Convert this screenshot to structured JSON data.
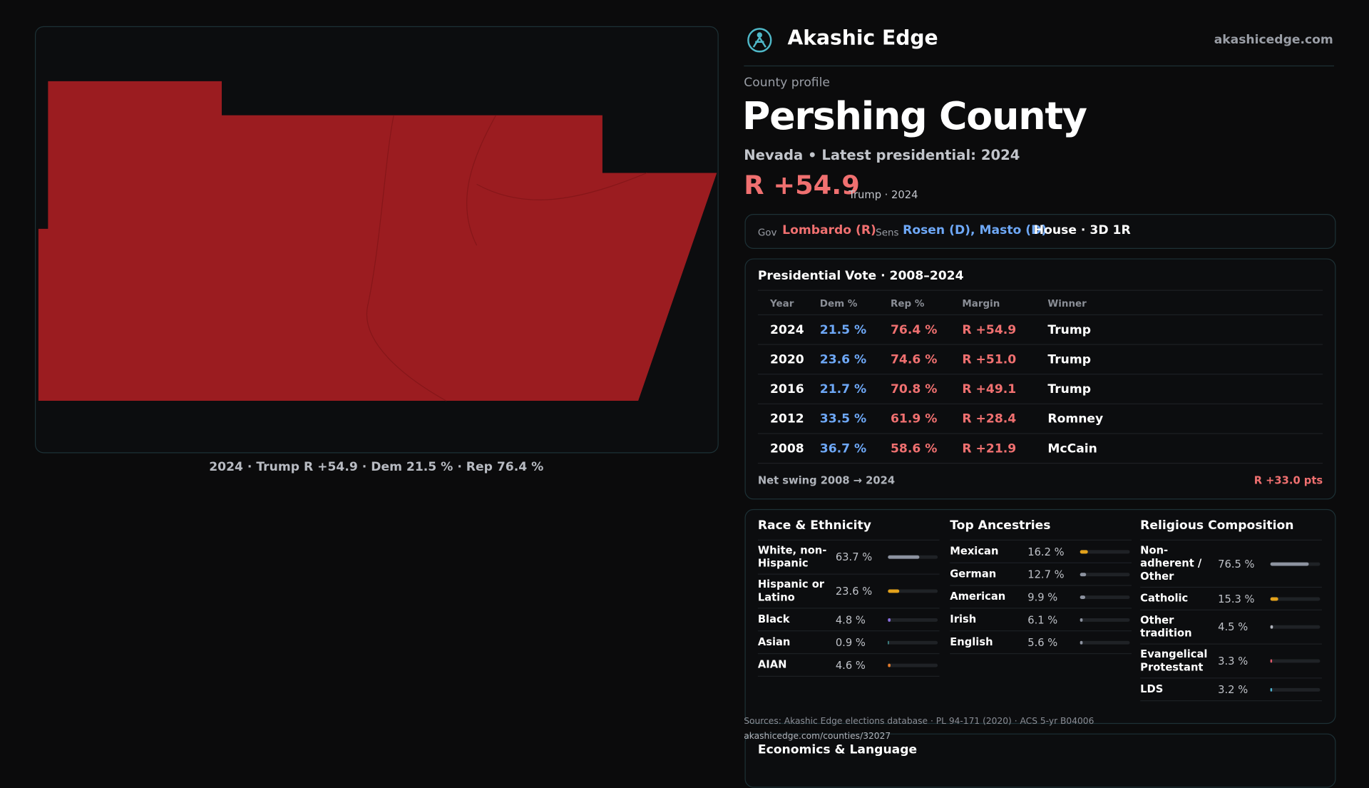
{
  "header": {
    "brand": "Akashic Edge",
    "site": "akashicedge.com"
  },
  "map": {
    "caption": "2024 · Trump R +54.9 · Dem 21.5 % · Rep 76.4 %"
  },
  "profile": {
    "kicker": "County profile",
    "title": "Pershing County",
    "subtitle": "Nevada • Latest presidential: 2024",
    "margin": "R +54.9",
    "margin_note": "Trump · 2024"
  },
  "officials": {
    "gov_label": "Gov",
    "gov": "Lombardo (R)",
    "sens_label": "Sens",
    "sens": "Rosen (D), Masto (D)",
    "house": "House · 3D 1R"
  },
  "presidential": {
    "title": "Presidential Vote · 2008–2024",
    "columns": [
      "Year",
      "Dem %",
      "Rep %",
      "Margin",
      "Winner"
    ],
    "rows": [
      [
        "2024",
        "21.5 %",
        "76.4 %",
        "R +54.9",
        "Trump"
      ],
      [
        "2020",
        "23.6 %",
        "74.6 %",
        "R +51.0",
        "Trump"
      ],
      [
        "2016",
        "21.7 %",
        "70.8 %",
        "R +49.1",
        "Trump"
      ],
      [
        "2012",
        "33.5 %",
        "61.9 %",
        "R +28.4",
        "Romney"
      ],
      [
        "2008",
        "36.7 %",
        "58.6 %",
        "R +21.9",
        "McCain"
      ]
    ],
    "swing_label": "Net swing 2008 → 2024",
    "swing": "R +33.0 pts"
  },
  "demographics": [
    {
      "title": "Race & Ethnicity",
      "rows": [
        {
          "label": "White, non-Hispanic",
          "value": 63.7,
          "value_label": "63.7 %",
          "color": "#8d93a0"
        },
        {
          "label": "Hispanic or Latino",
          "value": 23.6,
          "value_label": "23.6 %",
          "color": "#e3a21c"
        },
        {
          "label": "Black",
          "value": 4.8,
          "value_label": "4.8 %",
          "color": "#8a6fe0"
        },
        {
          "label": "Asian",
          "value": 0.9,
          "value_label": "0.9 %",
          "color": "#4fb3b3"
        },
        {
          "label": "AIAN",
          "value": 4.6,
          "value_label": "4.6 %",
          "color": "#e07a2c"
        }
      ]
    },
    {
      "title": "Top Ancestries",
      "rows": [
        {
          "label": "Mexican",
          "value": 16.2,
          "value_label": "16.2 %",
          "color": "#e3a21c"
        },
        {
          "label": "German",
          "value": 12.7,
          "value_label": "12.7 %",
          "color": "#8d93a0"
        },
        {
          "label": "American",
          "value": 9.9,
          "value_label": "9.9 %",
          "color": "#8d93a0"
        },
        {
          "label": "Irish",
          "value": 6.1,
          "value_label": "6.1 %",
          "color": "#8d93a0"
        },
        {
          "label": "English",
          "value": 5.6,
          "value_label": "5.6 %",
          "color": "#8d93a0"
        }
      ]
    },
    {
      "title": "Religious Composition",
      "rows": [
        {
          "label": "Non-adherent / Other",
          "value": 76.5,
          "value_label": "76.5 %",
          "color": "#8d93a0"
        },
        {
          "label": "Catholic",
          "value": 15.3,
          "value_label": "15.3 %",
          "color": "#e3a21c"
        },
        {
          "label": "Other tradition",
          "value": 4.5,
          "value_label": "4.5 %",
          "color": "#b0b4bc"
        },
        {
          "label": "Evangelical Protestant",
          "value": 3.3,
          "value_label": "3.3 %",
          "color": "#e05a6a"
        },
        {
          "label": "LDS",
          "value": 3.2,
          "value_label": "3.2 %",
          "color": "#4fb3d0"
        }
      ]
    }
  ],
  "sources": {
    "line1": "Sources: Akashic Edge elections database · PL 94-171 (2020) · ACS 5-yr B04006",
    "line2": "akashicedge.com/counties/32027"
  },
  "next_section": "Economics & Language"
}
